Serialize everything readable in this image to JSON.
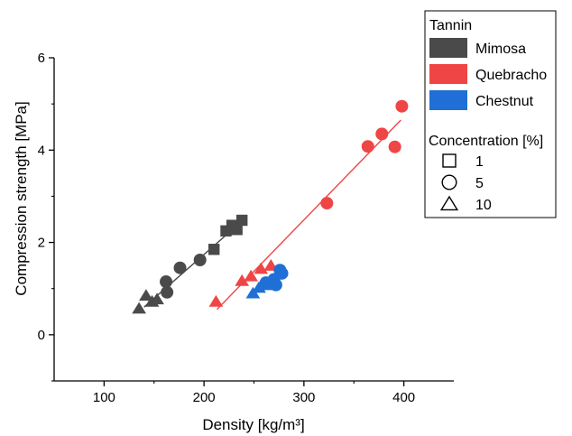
{
  "chart_data": {
    "type": "scatter",
    "xlabel": "Density [kg/m³]",
    "ylabel": "Compression strength [MPa]",
    "xlim": [
      50,
      450
    ],
    "ylim": [
      -1,
      6
    ],
    "x_ticks": [
      100,
      200,
      300,
      400
    ],
    "y_ticks": [
      0,
      2,
      4,
      6
    ],
    "grid": false,
    "legend_position": "top-right",
    "legend": {
      "tannin_title": "Tannin",
      "concentration_title": "Concentration [%]",
      "concentrations": [
        {
          "label": "1",
          "shape": "square"
        },
        {
          "label": "5",
          "shape": "circle"
        },
        {
          "label": "10",
          "shape": "triangle"
        }
      ]
    },
    "series": [
      {
        "name": "Mimosa",
        "color": "#4a4a4a",
        "fit": {
          "x": [
            140,
            240
          ],
          "y": [
            0.6,
            2.5
          ]
        },
        "points": [
          {
            "x": 210,
            "y": 1.85,
            "shape": "square"
          },
          {
            "x": 222,
            "y": 2.25,
            "shape": "square"
          },
          {
            "x": 228,
            "y": 2.37,
            "shape": "square"
          },
          {
            "x": 233,
            "y": 2.28,
            "shape": "square"
          },
          {
            "x": 238,
            "y": 2.48,
            "shape": "square"
          },
          {
            "x": 162,
            "y": 1.15,
            "shape": "circle"
          },
          {
            "x": 163,
            "y": 0.92,
            "shape": "circle"
          },
          {
            "x": 176,
            "y": 1.45,
            "shape": "circle"
          },
          {
            "x": 196,
            "y": 1.62,
            "shape": "circle"
          },
          {
            "x": 135,
            "y": 0.57,
            "shape": "triangle"
          },
          {
            "x": 142,
            "y": 0.85,
            "shape": "triangle"
          },
          {
            "x": 148,
            "y": 0.72,
            "shape": "triangle"
          },
          {
            "x": 153,
            "y": 0.77,
            "shape": "triangle"
          }
        ]
      },
      {
        "name": "Quebracho",
        "color": "#f04545",
        "fit": {
          "x": [
            213,
            397
          ],
          "y": [
            0.55,
            4.65
          ]
        },
        "points": [
          {
            "x": 323,
            "y": 2.85,
            "shape": "circle"
          },
          {
            "x": 364,
            "y": 4.08,
            "shape": "circle"
          },
          {
            "x": 378,
            "y": 4.35,
            "shape": "circle"
          },
          {
            "x": 391,
            "y": 4.07,
            "shape": "circle"
          },
          {
            "x": 398,
            "y": 4.95,
            "shape": "circle"
          },
          {
            "x": 212,
            "y": 0.72,
            "shape": "triangle"
          },
          {
            "x": 238,
            "y": 1.17,
            "shape": "triangle"
          },
          {
            "x": 247,
            "y": 1.27,
            "shape": "triangle"
          },
          {
            "x": 257,
            "y": 1.43,
            "shape": "triangle"
          },
          {
            "x": 267,
            "y": 1.5,
            "shape": "triangle"
          }
        ]
      },
      {
        "name": "Chestnut",
        "color": "#1f6fd6",
        "fit": {
          "x": [
            250,
            280
          ],
          "y": [
            0.95,
            1.4
          ]
        },
        "points": [
          {
            "x": 262,
            "y": 1.13,
            "shape": "circle"
          },
          {
            "x": 270,
            "y": 1.2,
            "shape": "circle"
          },
          {
            "x": 272,
            "y": 1.08,
            "shape": "circle"
          },
          {
            "x": 276,
            "y": 1.4,
            "shape": "circle"
          },
          {
            "x": 278,
            "y": 1.33,
            "shape": "circle"
          },
          {
            "x": 249,
            "y": 0.9,
            "shape": "triangle"
          },
          {
            "x": 255,
            "y": 1.02,
            "shape": "triangle"
          },
          {
            "x": 262,
            "y": 1.08,
            "shape": "triangle"
          }
        ]
      }
    ]
  }
}
